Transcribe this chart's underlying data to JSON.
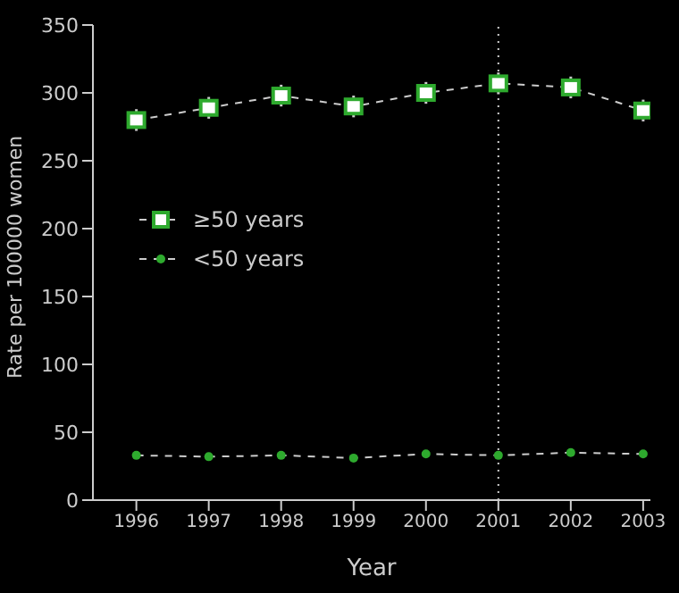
{
  "chart_data": {
    "type": "line",
    "xlabel": "Year",
    "ylabel": "Rate per 100000 women",
    "categories": [
      "1996",
      "1997",
      "1998",
      "1999",
      "2000",
      "2001",
      "2002",
      "2003"
    ],
    "series": [
      {
        "name": "≥50 years",
        "color": "#2eaa2e",
        "marker": "square",
        "values": [
          280,
          289,
          298,
          290,
          300,
          307,
          304,
          287
        ],
        "errors": [
          8,
          8,
          8,
          8,
          8,
          8,
          8,
          8
        ]
      },
      {
        "name": "<50 years",
        "color": "#2eaa2e",
        "marker": "circle",
        "values": [
          33,
          32,
          33,
          31,
          34,
          33,
          35,
          34
        ]
      }
    ],
    "ylim": [
      0,
      350
    ],
    "yticks": [
      0,
      50,
      100,
      150,
      200,
      250,
      300,
      350
    ],
    "grid": false,
    "legend": "left",
    "line_style": "dashed",
    "ref_lines": [
      {
        "axis": "x",
        "value": "2001",
        "line_style": "dotted",
        "color": "#cccccc"
      }
    ]
  }
}
